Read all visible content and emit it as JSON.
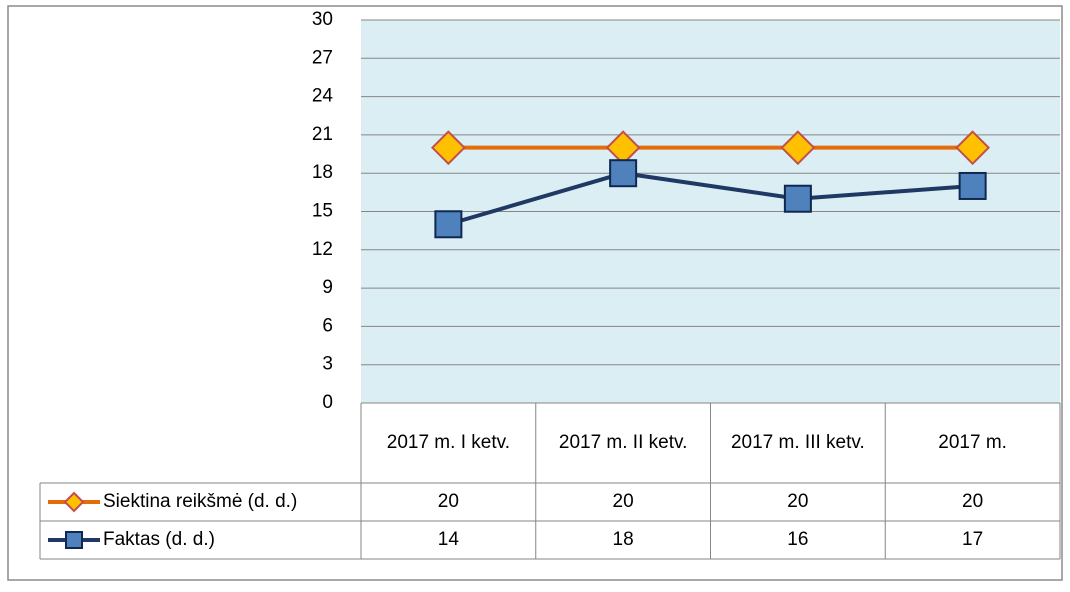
{
  "chart_data": {
    "type": "line",
    "categories": [
      "2017 m. I ketv.",
      "2017 m. II ketv.",
      "2017 m. III ketv.",
      "2017 m."
    ],
    "series": [
      {
        "name": "Siektina reikšmė (d. d.)",
        "color": "#e46c0a",
        "marker_fill": "#ffc000",
        "marker_stroke": "#c0504d",
        "marker": "diamond",
        "values": [
          20,
          20,
          20,
          20
        ]
      },
      {
        "name": "Faktas (d. d.)",
        "color": "#1f3864",
        "marker_fill": "#4f81bd",
        "marker_stroke": "#0f2850",
        "marker": "square",
        "values": [
          14,
          18,
          16,
          17
        ]
      }
    ],
    "ylim": [
      0,
      30
    ],
    "yticks": [
      0,
      3,
      6,
      9,
      12,
      15,
      18,
      21,
      24,
      27,
      30
    ],
    "grid": true,
    "data_table": true
  }
}
